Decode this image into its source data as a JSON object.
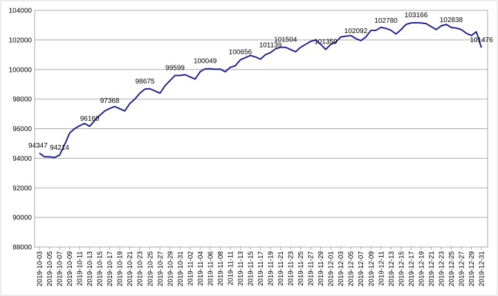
{
  "chart_data": {
    "type": "line",
    "categories": [
      "2019-10-03",
      null,
      "2019-10-05",
      null,
      "2019-10-07",
      null,
      "2019-10-09",
      null,
      "2019-10-11",
      null,
      "2019-10-13",
      null,
      "2019-10-15",
      null,
      "2019-10-17",
      null,
      "2019-10-19",
      null,
      "2019-10-21",
      null,
      "2019-10-23",
      null,
      "2019-10-25",
      null,
      "2019-10-27",
      null,
      "2019-10-29",
      null,
      "2019-10-31",
      null,
      "2019-11-02",
      null,
      "2019-11-04",
      null,
      "2019-11-06",
      null,
      "2019-11-08",
      null,
      "2019-11-11",
      null,
      "2019-11-13",
      null,
      "2019-11-15",
      null,
      "2019-11-17",
      null,
      "2019-11-19",
      null,
      "2019-11-21",
      null,
      "2019-11-23",
      null,
      "2019-11-25",
      null,
      "2019-11-27",
      null,
      "2019-11-29",
      null,
      "2019-12-01",
      null,
      "2019-12-03",
      null,
      "2019-12-05",
      null,
      "2019-12-07",
      null,
      "2019-12-09",
      null,
      "2019-12-11",
      null,
      "2019-12-13",
      null,
      "2019-12-15",
      null,
      "2019-12-17",
      null,
      "2019-12-19",
      null,
      "2019-12-21",
      null,
      "2019-12-23",
      null,
      "2019-12-25",
      null,
      "2019-12-27",
      null,
      "2019-12-29",
      null,
      "2019-12-31"
    ],
    "series": [
      {
        "color": "#1c1c94",
        "values": [
          94347,
          94100,
          94100,
          94050,
          94214,
          94900,
          95700,
          96000,
          96200,
          96350,
          96160,
          96550,
          96900,
          97200,
          97368,
          97500,
          97350,
          97200,
          97700,
          98000,
          98400,
          98675,
          98700,
          98550,
          98400,
          98900,
          99250,
          99599,
          99600,
          99650,
          99500,
          99350,
          99850,
          100049,
          100050,
          100020,
          100030,
          99850,
          100150,
          100250,
          100656,
          100800,
          100950,
          100850,
          100700,
          101000,
          101139,
          101400,
          101500,
          101504,
          101350,
          101200,
          101500,
          101700,
          101900,
          102000,
          101700,
          101359,
          101700,
          101850,
          102200,
          102250,
          102300,
          102092,
          101950,
          102200,
          102650,
          102650,
          102850,
          102780,
          102650,
          102400,
          102700,
          103050,
          103150,
          103166,
          103150,
          103100,
          102900,
          102700,
          102950,
          103050,
          102838,
          102800,
          102700,
          102450,
          102300,
          102550,
          101476
        ],
        "value_labels": [
          "94347",
          null,
          null,
          null,
          "94214",
          null,
          null,
          null,
          null,
          null,
          "96160",
          null,
          null,
          null,
          "97368",
          null,
          null,
          null,
          null,
          null,
          null,
          "98675",
          null,
          null,
          null,
          null,
          null,
          "99599",
          null,
          null,
          null,
          null,
          null,
          "100049",
          null,
          null,
          null,
          null,
          null,
          null,
          "100656",
          null,
          null,
          null,
          null,
          null,
          "101139",
          null,
          null,
          "101504",
          null,
          null,
          null,
          null,
          null,
          null,
          null,
          "101359",
          null,
          null,
          null,
          null,
          null,
          "102092",
          null,
          null,
          null,
          null,
          null,
          "102780",
          null,
          null,
          null,
          null,
          null,
          "103166",
          null,
          null,
          null,
          null,
          null,
          null,
          "102838",
          null,
          null,
          null,
          null,
          null,
          "101476"
        ]
      }
    ],
    "ylim": [
      88000,
      104000
    ],
    "yticks": [
      88000,
      90000,
      92000,
      94000,
      96000,
      98000,
      100000,
      102000,
      104000
    ],
    "grid": true
  }
}
